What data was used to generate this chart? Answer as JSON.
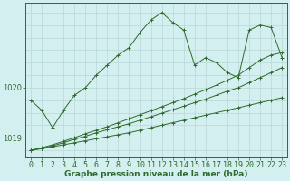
{
  "title": "Graphe pression niveau de la mer (hPa)",
  "background_color": "#d4efef",
  "grid_color": "#b8d8d8",
  "line_color": "#2d6a2d",
  "xlim": [
    -0.5,
    23.5
  ],
  "ylim": [
    1018.6,
    1021.7
  ],
  "yticks": [
    1019,
    1020
  ],
  "xticks": [
    0,
    1,
    2,
    3,
    4,
    5,
    6,
    7,
    8,
    9,
    10,
    11,
    12,
    13,
    14,
    15,
    16,
    17,
    18,
    19,
    20,
    21,
    22,
    23
  ],
  "series": [
    {
      "x": [
        0,
        1,
        2,
        3,
        4,
        5,
        6,
        7,
        8,
        9,
        10,
        11,
        12,
        13,
        14,
        15,
        16,
        17,
        18,
        19,
        20,
        21,
        22,
        23
      ],
      "y": [
        1019.75,
        1019.55,
        1019.2,
        1019.55,
        1019.85,
        1020.0,
        1020.25,
        1020.45,
        1020.65,
        1020.8,
        1021.1,
        1021.35,
        1021.5,
        1021.3,
        1021.15,
        1020.45,
        1020.6,
        1020.5,
        1020.3,
        1020.2,
        1021.15,
        1021.25,
        1021.2,
        1020.6
      ]
    },
    {
      "x": [
        0,
        1,
        2,
        3,
        4,
        5,
        6,
        7,
        8,
        9,
        10,
        11,
        12,
        13,
        14,
        15,
        16,
        17,
        18,
        19,
        20,
        21,
        22,
        23
      ],
      "y": [
        1018.75,
        1018.78,
        1018.82,
        1018.86,
        1018.9,
        1018.94,
        1018.98,
        1019.02,
        1019.06,
        1019.1,
        1019.15,
        1019.2,
        1019.25,
        1019.3,
        1019.35,
        1019.4,
        1019.45,
        1019.5,
        1019.55,
        1019.6,
        1019.65,
        1019.7,
        1019.75,
        1019.8
      ]
    },
    {
      "x": [
        0,
        1,
        2,
        3,
        4,
        5,
        6,
        7,
        8,
        9,
        10,
        11,
        12,
        13,
        14,
        15,
        16,
        17,
        18,
        19,
        20,
        21,
        22,
        23
      ],
      "y": [
        1018.75,
        1018.79,
        1018.84,
        1018.9,
        1018.97,
        1019.03,
        1019.1,
        1019.16,
        1019.22,
        1019.28,
        1019.35,
        1019.42,
        1019.49,
        1019.56,
        1019.63,
        1019.7,
        1019.77,
        1019.85,
        1019.93,
        1020.0,
        1020.1,
        1020.2,
        1020.3,
        1020.4
      ]
    },
    {
      "x": [
        0,
        1,
        2,
        3,
        4,
        5,
        6,
        7,
        8,
        9,
        10,
        11,
        12,
        13,
        14,
        15,
        16,
        17,
        18,
        19,
        20,
        21,
        22,
        23
      ],
      "y": [
        1018.75,
        1018.8,
        1018.86,
        1018.93,
        1019.0,
        1019.08,
        1019.15,
        1019.22,
        1019.3,
        1019.38,
        1019.46,
        1019.54,
        1019.62,
        1019.7,
        1019.78,
        1019.87,
        1019.96,
        1020.05,
        1020.15,
        1020.25,
        1020.4,
        1020.55,
        1020.65,
        1020.7
      ]
    }
  ],
  "tick_labelsize": 6,
  "title_fontsize": 6.5
}
